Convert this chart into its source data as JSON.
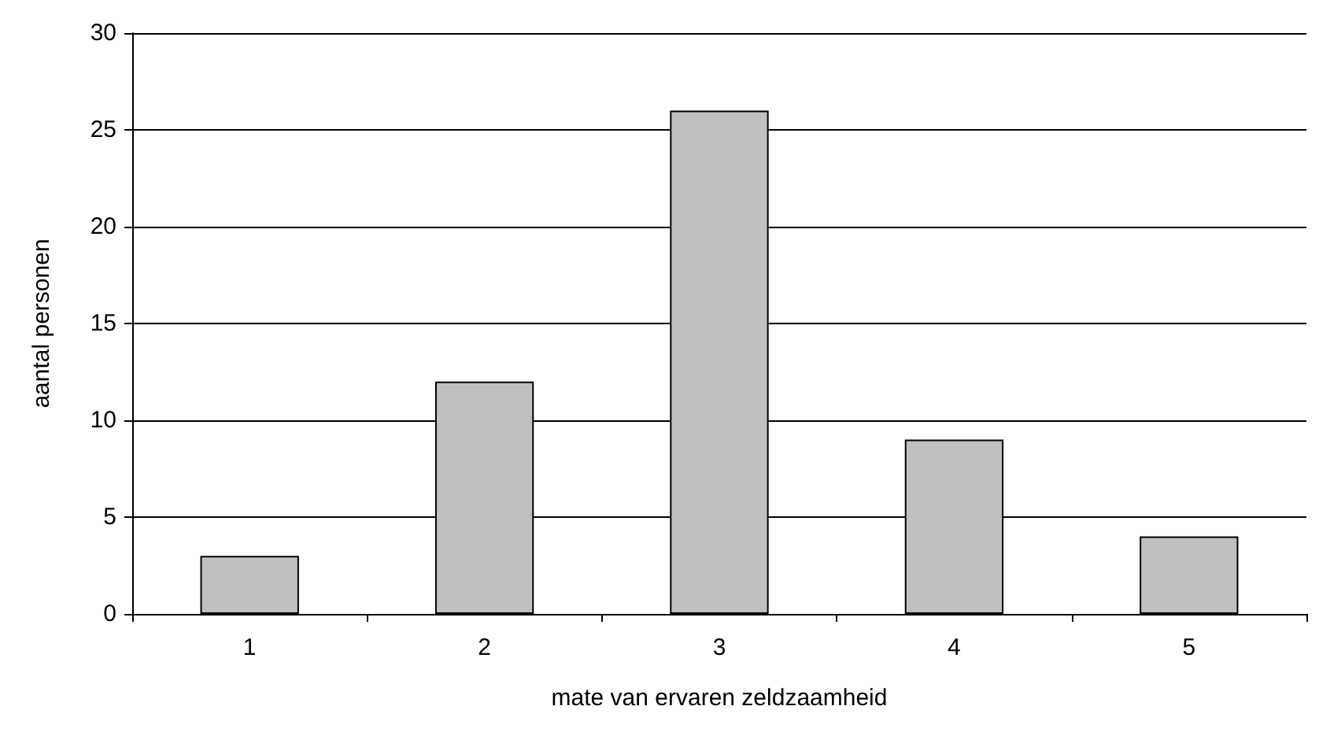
{
  "chart_data": {
    "type": "bar",
    "xlabel": "mate van ervaren zeldzaamheid",
    "ylabel": "aantal personen",
    "categories": [
      "1",
      "2",
      "3",
      "4",
      "5"
    ],
    "values": [
      3,
      12,
      26,
      9,
      4
    ],
    "color": "#c0c0c0",
    "ylim": [
      0,
      30
    ],
    "yticks": [
      0,
      5,
      10,
      15,
      20,
      25,
      30
    ],
    "grid": "y"
  }
}
